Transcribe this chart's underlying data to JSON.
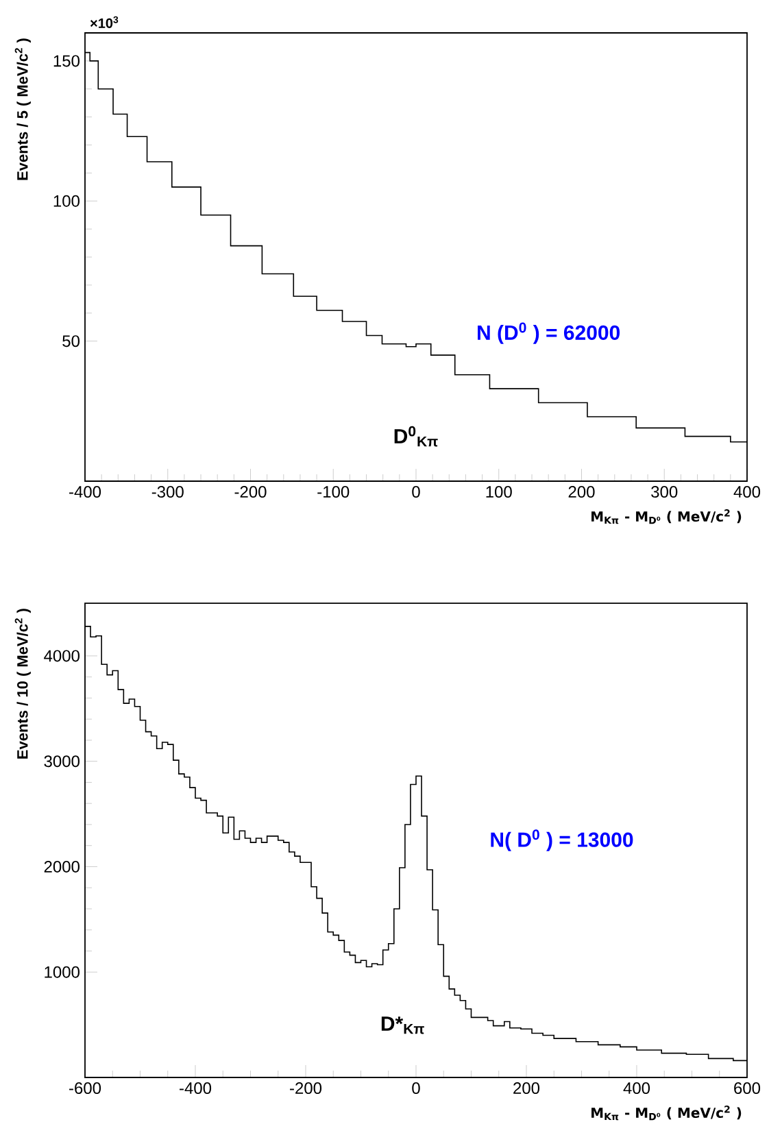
{
  "chart_data": [
    {
      "type": "histogram",
      "xlabel": "M$_{Kπ}$ - M$_{D⁰}$ ( MeV/c$^{2}$ )",
      "ylabel": "Events / 5 ( MeV/c$^{2}$ )",
      "bins": [
        -400,
        -394,
        -384,
        -366,
        -349,
        -325,
        -295,
        -260,
        -224,
        -186,
        -148,
        -120,
        -89,
        -60,
        -41,
        -12,
        0,
        18,
        47,
        89,
        148,
        207,
        266,
        325,
        380,
        400
      ],
      "values": [
        153,
        150,
        140,
        131,
        123,
        114,
        105,
        95,
        84,
        74,
        66,
        61,
        57,
        52,
        49,
        48,
        49,
        45,
        38,
        33,
        28,
        23,
        19,
        16,
        14
      ],
      "color": "#000000",
      "xlim": [
        -400,
        400
      ],
      "ylim": [
        0,
        160
      ],
      "xticks": [
        -400,
        -300,
        -200,
        -100,
        0,
        100,
        200,
        300,
        400
      ],
      "yticks": [
        50,
        100,
        150
      ],
      "annotations": [
        "×10$^{3}$",
        "N (D$^{0}$ ) = 62000",
        "D$^{0}$$_{Kπ}$"
      ]
    },
    {
      "type": "histogram",
      "xlabel": "M$_{Kπ}$ - M$_{D⁰}$ ( MeV/c$^{2}$ )",
      "ylabel": "Events / 10 ( MeV/c$^{2}$ )",
      "bins": [
        -600,
        -590,
        -580,
        -570,
        -560,
        -550,
        -540,
        -530,
        -520,
        -510,
        -500,
        -490,
        -480,
        -470,
        -460,
        -450,
        -440,
        -430,
        -420,
        -410,
        -400,
        -390,
        -380,
        -360,
        -350,
        -340,
        -330,
        -320,
        -310,
        -300,
        -290,
        -280,
        -270,
        -250,
        -240,
        -230,
        -220,
        -210,
        -190,
        -180,
        -170,
        -160,
        -150,
        -140,
        -130,
        -120,
        -110,
        -100,
        -90,
        -80,
        -70,
        -60,
        -50,
        -40,
        -30,
        -20,
        -10,
        0,
        10,
        20,
        30,
        40,
        50,
        60,
        70,
        80,
        90,
        100,
        130,
        140,
        160,
        170,
        190,
        210,
        230,
        250,
        290,
        330,
        370,
        400,
        445,
        490,
        530,
        575,
        600
      ],
      "values": [
        4280,
        4180,
        4190,
        3920,
        3820,
        3860,
        3680,
        3550,
        3590,
        3520,
        3390,
        3280,
        3240,
        3120,
        3180,
        3160,
        3010,
        2880,
        2850,
        2750,
        2650,
        2630,
        2510,
        2480,
        2320,
        2470,
        2260,
        2340,
        2270,
        2230,
        2270,
        2230,
        2290,
        2250,
        2230,
        2140,
        2100,
        2040,
        1810,
        1700,
        1560,
        1380,
        1350,
        1300,
        1190,
        1160,
        1090,
        1110,
        1050,
        1080,
        1070,
        1210,
        1270,
        1600,
        1990,
        2400,
        2780,
        2860,
        2480,
        1970,
        1590,
        1260,
        960,
        840,
        780,
        730,
        650,
        570,
        540,
        490,
        530,
        470,
        460,
        420,
        400,
        370,
        340,
        310,
        290,
        260,
        230,
        220,
        180,
        160
      ],
      "color": "#000000",
      "xlim": [
        -600,
        600
      ],
      "ylim": [
        0,
        4500
      ],
      "xticks": [
        -600,
        -400,
        -200,
        0,
        200,
        400,
        600
      ],
      "yticks": [
        1000,
        2000,
        3000,
        4000
      ],
      "annotations": [
        "N( D$^{0}$ ) = 13000",
        "D*$_{Kπ}$"
      ]
    }
  ]
}
